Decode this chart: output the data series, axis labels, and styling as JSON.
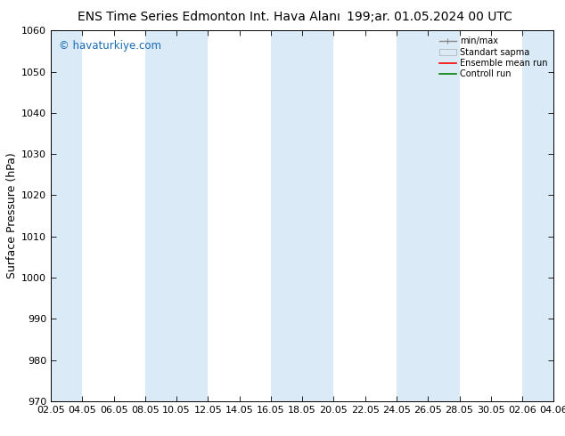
{
  "title_left": "ENS Time Series Edmonton Int. Hava Alanı",
  "title_right": "199;ar. 01.05.2024 00 UTC",
  "ylabel": "Surface Pressure (hPa)",
  "ylim": [
    970,
    1060
  ],
  "yticks": [
    970,
    980,
    990,
    1000,
    1010,
    1020,
    1030,
    1040,
    1050,
    1060
  ],
  "xtick_labels": [
    "02.05",
    "04.05",
    "06.05",
    "08.05",
    "10.05",
    "12.05",
    "14.05",
    "16.05",
    "18.05",
    "20.05",
    "22.05",
    "24.05",
    "26.05",
    "28.05",
    "30.05",
    "02.06",
    "04.06"
  ],
  "watermark": "© havaturkiye.com",
  "watermark_color": "#1a6bb5",
  "bg_color": "#ffffff",
  "band_color": "#daeaf7",
  "legend_labels": [
    "min/max",
    "Standart sapma",
    "Ensemble mean run",
    "Controll run"
  ],
  "title_fontsize": 10,
  "tick_fontsize": 8,
  "ylabel_fontsize": 9
}
